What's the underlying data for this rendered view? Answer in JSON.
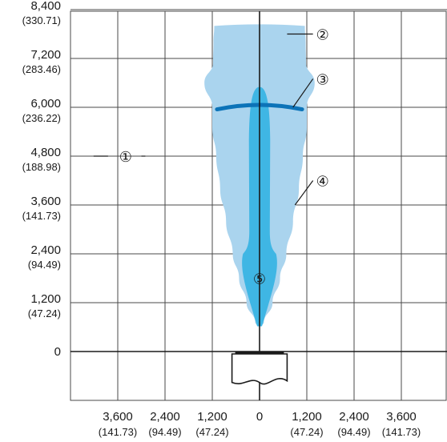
{
  "chart_data": {
    "type": "area",
    "title": "",
    "xlabel": "",
    "ylabel": "",
    "xlim": [
      -7200,
      7200
    ],
    "ylim": [
      -1200,
      8400
    ],
    "grid": true,
    "x_tick_labels": [
      {
        "value": -3600,
        "main": "3,600",
        "sub": "(141.73)"
      },
      {
        "value": -2400,
        "main": "2,400",
        "sub": "(94.49)"
      },
      {
        "value": -1200,
        "main": "1,200",
        "sub": "(47.24)"
      },
      {
        "value": 0,
        "main": "0",
        "sub": ""
      },
      {
        "value": 1200,
        "main": "1,200",
        "sub": "(47.24)"
      },
      {
        "value": 2400,
        "main": "2,400",
        "sub": "(94.49)"
      },
      {
        "value": 3600,
        "main": "3,600",
        "sub": "(141.73)"
      }
    ],
    "y_tick_labels": [
      {
        "value": 8400,
        "main": "8,400",
        "sub": "(330.71)"
      },
      {
        "value": 7200,
        "main": "7,200",
        "sub": "(283.46)"
      },
      {
        "value": 6000,
        "main": "6,000",
        "sub": "(236.22)"
      },
      {
        "value": 4800,
        "main": "4,800",
        "sub": "(188.98)"
      },
      {
        "value": 3600,
        "main": "3,600",
        "sub": "(141.73)"
      },
      {
        "value": 2400,
        "main": "2,400",
        "sub": "(94.49)"
      },
      {
        "value": 1200,
        "main": "1,200",
        "sub": "(47.24)"
      },
      {
        "value": 0,
        "main": "0",
        "sub": ""
      }
    ],
    "shapes": {
      "outer_field_profile": [
        {
          "y": 8000,
          "hw": 1150
        },
        {
          "y": 7600,
          "hw": 1170
        },
        {
          "y": 7100,
          "hw": 1180
        },
        {
          "y": 6600,
          "hw": 1400
        },
        {
          "y": 6000,
          "hw": 1200
        },
        {
          "y": 5500,
          "hw": 1200
        },
        {
          "y": 4800,
          "hw": 1100
        },
        {
          "y": 4000,
          "hw": 1000
        },
        {
          "y": 3200,
          "hw": 850
        },
        {
          "y": 2400,
          "hw": 680
        },
        {
          "y": 1800,
          "hw": 520
        },
        {
          "y": 1200,
          "hw": 330
        },
        {
          "y": 700,
          "hw": 110
        }
      ],
      "inner_core_profile": [
        {
          "y": 6400,
          "hw": 50
        },
        {
          "y": 6300,
          "hw": 160
        },
        {
          "y": 6000,
          "hw": 230
        },
        {
          "y": 5000,
          "hw": 270
        },
        {
          "y": 4000,
          "hw": 270
        },
        {
          "y": 3200,
          "hw": 250
        },
        {
          "y": 2500,
          "hw": 200
        }
      ],
      "beam_arc": {
        "x_from": -1080,
        "x_to": 1080,
        "y_edge": 5950,
        "y_mid": 6060
      },
      "sensor_outline": {
        "x_from": -700,
        "x_to": 700,
        "y_top": 0,
        "y_bottom": -800
      },
      "colors": {
        "outer_field": "#aad4ee",
        "inner_core": "#3fb6e4",
        "beam_arc": "#0c73b8",
        "axis": "#1a1a1a",
        "grid": "#4a4a4a"
      }
    },
    "callouts": [
      {
        "label": "②",
        "x": 1600,
        "y": 7800,
        "from_x": 700,
        "from_y": 7800
      },
      {
        "label": "③",
        "x": 1600,
        "y": 6700,
        "from_x": 850,
        "from_y": 6000
      },
      {
        "label": "①",
        "x": -3400,
        "y": 4800,
        "from_x": -3000,
        "from_y": 4800,
        "to_x": -2900
      },
      {
        "label": "④",
        "x": 1600,
        "y": 4200,
        "from_x": 900,
        "from_y": 3600
      },
      {
        "label": "⑤",
        "x": 0,
        "y": 1800
      }
    ]
  }
}
